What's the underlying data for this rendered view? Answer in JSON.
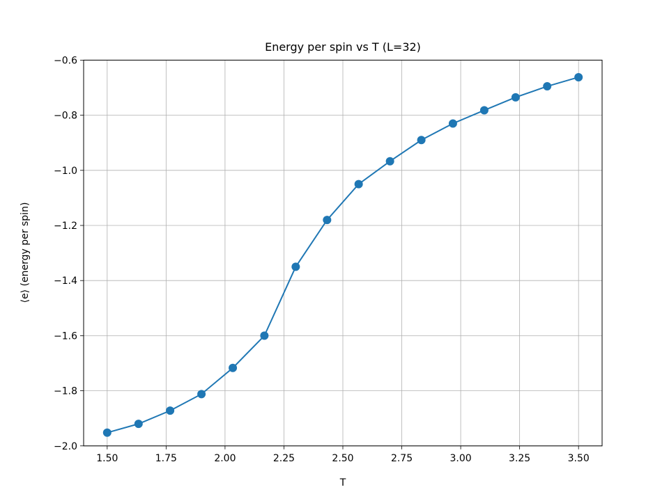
{
  "chart_data": {
    "type": "line",
    "title": "Energy per spin vs T (L=32)",
    "xlabel": "T",
    "ylabel": "⟨e⟩ (energy per spin)",
    "xlim": [
      1.4,
      3.6
    ],
    "ylim": [
      -2.0,
      -0.6
    ],
    "xticks": [
      1.5,
      1.75,
      2.0,
      2.25,
      2.5,
      2.75,
      3.0,
      3.25,
      3.5
    ],
    "xtick_labels": [
      "1.50",
      "1.75",
      "2.00",
      "2.25",
      "2.50",
      "2.75",
      "3.00",
      "3.25",
      "3.50"
    ],
    "yticks": [
      -2.0,
      -1.8,
      -1.6,
      -1.4,
      -1.2,
      -1.0,
      -0.8,
      -0.6
    ],
    "ytick_labels": [
      "−2.0",
      "−1.8",
      "−1.6",
      "−1.4",
      "−1.2",
      "−1.0",
      "−0.8",
      "−0.6"
    ],
    "grid": true,
    "color": "#1f77b4",
    "marker": "circle",
    "series": [
      {
        "x": [
          1.5,
          1.633,
          1.767,
          1.9,
          2.033,
          2.167,
          2.3,
          2.433,
          2.567,
          2.7,
          2.833,
          2.967,
          3.1,
          3.233,
          3.367,
          3.5
        ],
        "y": [
          -1.952,
          -1.92,
          -1.872,
          -1.812,
          -1.717,
          -1.6,
          -1.35,
          -1.18,
          -1.05,
          -0.967,
          -0.89,
          -0.83,
          -0.782,
          -0.735,
          -0.695,
          -0.662
        ]
      }
    ]
  }
}
